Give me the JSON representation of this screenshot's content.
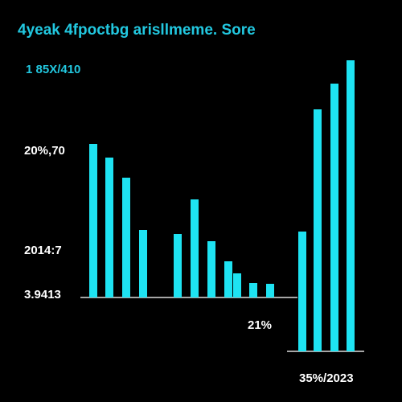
{
  "chart_data": {
    "type": "bar",
    "title": "4yeak 4fpoctbg arisllmeme. Sore",
    "subtitle": "1 85X/410",
    "annotations": [
      "20%,70",
      "2014:7",
      "3.9413",
      "21%",
      "35%/2023"
    ],
    "color": "#1ee3f2",
    "groups": [
      {
        "values": [
          191,
          174,
          149,
          84,
          79,
          122,
          70,
          45,
          30,
          18,
          17
        ]
      },
      {
        "values": [
          149,
          301,
          333,
          362
        ]
      }
    ]
  }
}
